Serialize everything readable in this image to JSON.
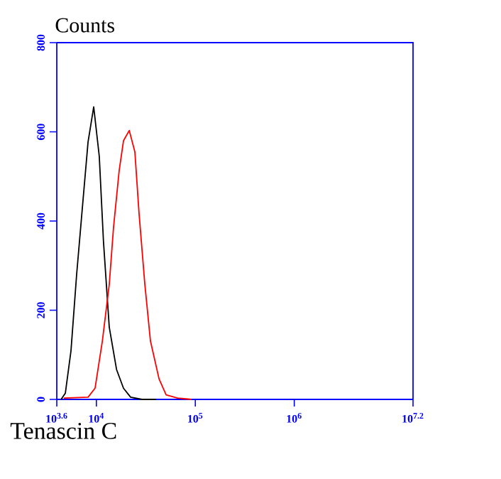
{
  "chart_data": {
    "type": "line",
    "title": "Counts",
    "xlabel": "Tenascin C",
    "log": "x",
    "xlim": [
      3981,
      15848932
    ],
    "ylim": [
      0,
      800
    ],
    "xticks": [
      {
        "value": 3981,
        "label": "10$^{3.6}$"
      },
      {
        "value": 10000,
        "label": "10$^{4}$"
      },
      {
        "value": 100000,
        "label": "10$^{5}$"
      },
      {
        "value": 1000000,
        "label": "10$^{6}$"
      },
      {
        "value": 15848932,
        "label": "10$^{7.2}$"
      }
    ],
    "yticks": [
      0,
      200,
      400,
      600,
      800
    ],
    "series": [
      {
        "color": "#000000",
        "x": [
          4400,
          4860,
          5540,
          6320,
          7210,
          8240,
          9400,
          10700,
          11800,
          13500,
          16000,
          18800,
          22200,
          28900,
          40200
        ],
        "values": [
          0,
          14,
          109,
          280,
          428,
          577,
          656,
          545,
          354,
          162,
          67,
          25,
          5,
          0,
          0
        ]
      },
      {
        "color": "#ff0000",
        "x": [
          4700,
          8240,
          9700,
          11500,
          13500,
          14900,
          17000,
          18800,
          21500,
          24500,
          27000,
          30900,
          35200,
          43000,
          50700,
          66100,
          91800
        ],
        "values": [
          3,
          5,
          25,
          131,
          258,
          385,
          513,
          580,
          603,
          555,
          417,
          258,
          131,
          46,
          10,
          3,
          0
        ]
      }
    ]
  }
}
